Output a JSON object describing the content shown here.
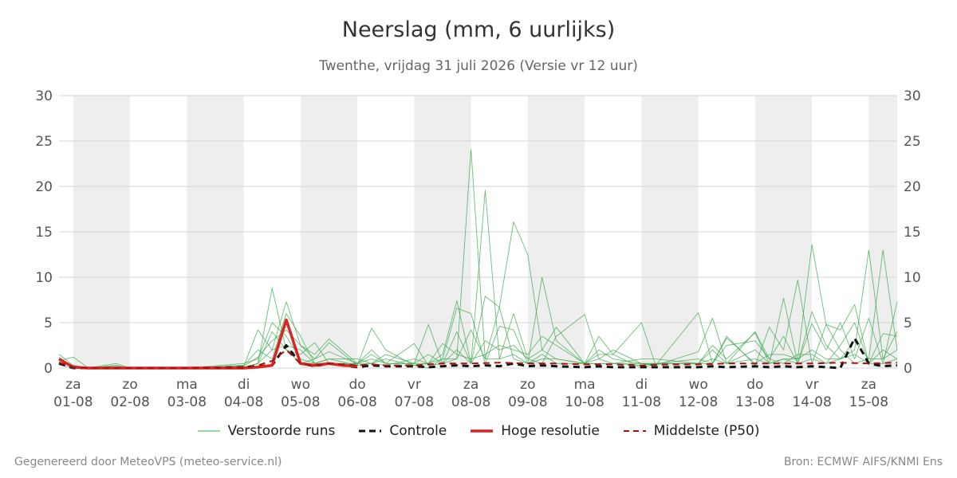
{
  "chart_data": {
    "type": "line",
    "title": "Neerslag (mm, 6 uurlijks)",
    "subtitle": "Twenthe, vrijdag 31 juli 2026 (Versie vr 12 uur)",
    "ylim": [
      0,
      30
    ],
    "yticks": [
      0,
      5,
      10,
      15,
      20,
      25,
      30
    ],
    "xlim": [
      -0.25,
      14.5
    ],
    "x_ticks": [
      {
        "x": 0,
        "day": "za",
        "date": "01-08"
      },
      {
        "x": 1,
        "day": "zo",
        "date": "02-08"
      },
      {
        "x": 2,
        "day": "ma",
        "date": "03-08"
      },
      {
        "x": 3,
        "day": "di",
        "date": "04-08"
      },
      {
        "x": 4,
        "day": "wo",
        "date": "05-08"
      },
      {
        "x": 5,
        "day": "do",
        "date": "06-08"
      },
      {
        "x": 6,
        "day": "vr",
        "date": "07-08"
      },
      {
        "x": 7,
        "day": "za",
        "date": "08-08"
      },
      {
        "x": 8,
        "day": "zo",
        "date": "09-08"
      },
      {
        "x": 9,
        "day": "ma",
        "date": "10-08"
      },
      {
        "x": 10,
        "day": "di",
        "date": "11-08"
      },
      {
        "x": 11,
        "day": "wo",
        "date": "12-08"
      },
      {
        "x": 12,
        "day": "do",
        "date": "13-08"
      },
      {
        "x": 13,
        "day": "vr",
        "date": "14-08"
      },
      {
        "x": 14,
        "day": "za",
        "date": "15-08"
      }
    ],
    "night_bands": [
      [
        0,
        1
      ],
      [
        2,
        3
      ],
      [
        4,
        5
      ],
      [
        6,
        7
      ],
      [
        8,
        9
      ],
      [
        10,
        11
      ],
      [
        12,
        13
      ],
      [
        14,
        14.5
      ]
    ],
    "grid": true,
    "legend_position": "bottom-center",
    "series": [
      {
        "name": "Verstoorde runs",
        "style": "ensemble",
        "color": "#3aa84a",
        "runs": [
          {
            "x": [
              -0.25,
              0,
              0.25,
              0.75,
              1,
              2,
              3,
              3.25,
              3.5,
              3.75,
              4,
              4.25,
              4.5,
              5,
              5.25,
              5.5,
              6,
              6.25,
              6.5,
              6.75,
              7,
              7.25,
              7.5,
              7.75,
              8,
              8.25,
              8.5,
              9,
              9.25,
              9.5,
              10,
              10.25,
              11,
              11.25,
              11.5,
              12,
              12.25,
              12.5,
              12.75,
              13,
              13.25,
              13.5,
              13.75,
              14,
              14.25,
              14.5
            ],
            "y": [
              1.5,
              0.3,
              0,
              0.5,
              0,
              0,
              0,
              0.5,
              8.8,
              2,
              0.5,
              1,
              2.8,
              0.3,
              4.4,
              2,
              0.3,
              0,
              1,
              6.6,
              6,
              0.5,
              4.6,
              4.2,
              0.5,
              10,
              3,
              0.5,
              1.5,
              1.5,
              0,
              0.5,
              1,
              0.5,
              3.5,
              0.3,
              4.5,
              2,
              9.7,
              0.5,
              4.8,
              2,
              0.5,
              1,
              13,
              2
            ]
          },
          {
            "x": [
              -0.25,
              0,
              0.25,
              0.75,
              1,
              2,
              3,
              3.25,
              3.5,
              3.75,
              4,
              4.25,
              4.5,
              5,
              5.25,
              5.5,
              6,
              6.25,
              6.5,
              6.75,
              7,
              7.25,
              7.5,
              7.75,
              8,
              8.25,
              8.5,
              9,
              9.25,
              9.5,
              10,
              10.25,
              11,
              11.25,
              11.5,
              12,
              12.25,
              12.5,
              12.75,
              13,
              13.25,
              13.5,
              13.75,
              14,
              14.25,
              14.5
            ],
            "y": [
              1,
              0.2,
              0,
              0.3,
              0,
              0,
              0.2,
              4.2,
              2,
              7.3,
              2.5,
              1.5,
              3.2,
              0.5,
              1.5,
              0.5,
              2.7,
              0.3,
              0.5,
              1,
              24.1,
              1,
              6.7,
              16.1,
              12.5,
              2,
              4.5,
              0.5,
              3.5,
              1.5,
              5,
              0.3,
              6.1,
              0.5,
              3.3,
              0.5,
              1.5,
              1.5,
              1,
              13.6,
              4.8,
              4.2,
              7,
              0.5,
              3.8,
              3.5
            ]
          },
          {
            "x": [
              -0.25,
              0,
              0.25,
              0.75,
              1,
              2,
              3,
              3.25,
              3.5,
              3.75,
              4,
              4.25,
              4.5,
              5,
              5.25,
              5.5,
              6,
              6.25,
              6.5,
              6.75,
              7,
              7.25,
              7.5,
              7.75,
              8,
              8.25,
              8.5,
              9,
              9.25,
              9.5,
              10,
              10.25,
              11,
              11.25,
              11.5,
              12,
              12.25,
              12.5,
              12.75,
              13,
              13.25,
              13.5,
              13.75,
              14,
              14.25,
              14.5
            ],
            "y": [
              0.8,
              1.2,
              0.1,
              0.1,
              0,
              0,
              0.5,
              1,
              5,
              3.5,
              1,
              0.5,
              0.5,
              0.5,
              2,
              0.5,
              0.5,
              4.8,
              0.5,
              4,
              0.5,
              19.6,
              1,
              6,
              1,
              0.5,
              3.5,
              5.9,
              1,
              2,
              0.5,
              0.3,
              1.8,
              5.5,
              0.5,
              4,
              1,
              3.5,
              0.5,
              4.9,
              2,
              5,
              1,
              5.5,
              0.5,
              7.3
            ]
          },
          {
            "x": [
              -0.25,
              0,
              0.25,
              0.75,
              1,
              2,
              3,
              3.25,
              3.5,
              3.75,
              4,
              4.25,
              4.5,
              5,
              5.25,
              5.5,
              6,
              6.25,
              6.5,
              6.75,
              7,
              7.25,
              7.5,
              7.75,
              8,
              8.25,
              8.5,
              9,
              9.25,
              9.5,
              10,
              10.25,
              11,
              11.25,
              11.5,
              12,
              12.25,
              12.5,
              12.75,
              13,
              13.25,
              13.5,
              13.75,
              14,
              14.25,
              14.5
            ],
            "y": [
              1.2,
              0,
              0,
              0.2,
              0,
              0,
              0.3,
              2,
              1,
              6,
              3.5,
              0.5,
              1,
              1,
              0.5,
              1.5,
              0.5,
              0.5,
              1.5,
              7.4,
              0.5,
              7.9,
              6.7,
              1,
              0.5,
              1,
              1,
              0.5,
              2,
              1,
              0.5,
              0.5,
              0.5,
              2.5,
              1,
              3.9,
              0.5,
              7.7,
              0.5,
              6.2,
              2.5,
              1,
              2,
              13,
              1,
              4
            ]
          },
          {
            "x": [
              -0.25,
              0,
              0.25,
              0.75,
              1,
              2,
              3,
              3.25,
              3.5,
              3.75,
              4,
              4.25,
              4.5,
              5,
              5.25,
              5.5,
              6,
              6.25,
              6.5,
              6.75,
              7,
              7.25,
              7.5,
              7.75,
              8,
              8.25,
              8.5,
              9,
              9.25,
              9.5,
              10,
              10.25,
              11,
              11.25,
              11.5,
              12,
              12.25,
              12.5,
              12.75,
              13,
              13.25,
              13.5,
              13.75,
              14,
              14.25,
              14.5
            ],
            "y": [
              0.5,
              0.3,
              0,
              0.1,
              0,
              0,
              0.1,
              0.5,
              4,
              2,
              1.5,
              2.8,
              0.5,
              0.5,
              0.5,
              0.3,
              1,
              0.5,
              2.7,
              1.5,
              1,
              1.5,
              2.5,
              2,
              1.5,
              3.5,
              2.5,
              0.5,
              0.5,
              0.5,
              1,
              1,
              0.5,
              0.5,
              2.5,
              3,
              1,
              0.5,
              1.5,
              1.5,
              0.5,
              2.5,
              5,
              0.5,
              2,
              1
            ]
          },
          {
            "x": [
              -0.25,
              0,
              0.25,
              0.75,
              1,
              2,
              3,
              3.25,
              3.5,
              3.75,
              4,
              4.25,
              4.5,
              5,
              5.25,
              5.5,
              6,
              6.25,
              6.5,
              6.75,
              7,
              7.25,
              7.5,
              7.75,
              8,
              8.25,
              8.5,
              9,
              9.25,
              9.5,
              10,
              10.25,
              11,
              11.25,
              11.5,
              12,
              12.25,
              12.5,
              12.75,
              13,
              13.25,
              13.5,
              13.75,
              14,
              14.25,
              14.5
            ],
            "y": [
              0.7,
              0.1,
              0,
              0,
              0,
              0,
              0.2,
              1.2,
              3,
              4.2,
              2.5,
              1,
              1.8,
              0.5,
              1,
              0.5,
              0.5,
              1.5,
              0.5,
              2,
              0.5,
              3,
              2,
              2.5,
              1,
              2,
              1,
              0.5,
              1,
              0.5,
              0.5,
              0.5,
              0.5,
              2,
              0.5,
              2,
              0.5,
              1,
              1,
              2,
              1,
              1,
              3,
              1,
              1,
              2
            ]
          },
          {
            "x": [
              -0.25,
              0,
              0.25,
              0.75,
              1,
              2,
              3,
              3.25,
              3.5,
              3.75,
              4,
              4.25,
              4.5,
              5,
              5.25,
              5.5,
              6,
              6.25,
              6.5,
              6.75,
              7,
              7.25,
              7.5,
              7.75,
              8,
              8.25,
              8.5,
              9,
              9.25,
              9.5,
              10,
              10.25,
              11,
              11.25,
              11.5,
              12,
              12.25,
              12.5,
              12.75,
              13,
              13.25,
              13.5,
              13.75,
              14,
              14.25,
              14.5
            ],
            "y": [
              0.4,
              0,
              0,
              0,
              0,
              0,
              0.1,
              0.5,
              2,
              2.5,
              2,
              0.5,
              1,
              0.3,
              0.5,
              1,
              0.3,
              0.5,
              1,
              1,
              4.2,
              1,
              1,
              1.5,
              0.5,
              1.5,
              0.5,
              0.5,
              0.5,
              0.5,
              0.3,
              0.5,
              0.5,
              1,
              0.5,
              1,
              0.5,
              1,
              0.5,
              1,
              0.5,
              1,
              1.5,
              0.5,
              0.5,
              1
            ]
          }
        ]
      },
      {
        "name": "Controle",
        "style": "dashed",
        "color": "#111111",
        "x": [
          -0.25,
          0,
          0.25,
          0.75,
          1,
          2,
          3,
          3.25,
          3.5,
          3.75,
          4,
          4.25,
          4.5,
          5,
          5.25,
          5.5,
          6,
          6.25,
          6.5,
          6.75,
          7,
          7.25,
          7.5,
          7.75,
          8,
          8.25,
          8.5,
          9,
          9.25,
          9.5,
          10,
          10.25,
          11,
          11.25,
          11.5,
          12,
          12.25,
          12.5,
          12.75,
          13,
          13.25,
          13.5,
          13.75,
          14,
          14.25,
          14.5
        ],
        "y": [
          0.5,
          0,
          0,
          0,
          0,
          0,
          0.1,
          0.2,
          0.3,
          2.5,
          0.5,
          0.2,
          0.5,
          0.1,
          0.3,
          0.2,
          0.2,
          0.1,
          0.2,
          0.3,
          0.2,
          0.3,
          0.2,
          0.5,
          0.2,
          0.3,
          0.2,
          0.1,
          0.2,
          0.1,
          0.1,
          0.1,
          0.1,
          0.2,
          0.1,
          0.2,
          0.1,
          0.2,
          0.1,
          0.2,
          0.1,
          0,
          3.3,
          0.5,
          0.2,
          0.3
        ]
      },
      {
        "name": "Hoge resolutie",
        "style": "thick",
        "color": "#dd2222",
        "x": [
          -0.25,
          0,
          0.25,
          1,
          2,
          3,
          3.25,
          3.5,
          3.75,
          4,
          4.25,
          4.5,
          4.75,
          5
        ],
        "y": [
          1,
          0.1,
          0,
          0,
          0,
          0,
          0.1,
          0.3,
          5.3,
          0.5,
          0.3,
          0.5,
          0.3,
          0.2
        ]
      },
      {
        "name": "Middelste (P50)",
        "style": "dashed",
        "color": "#aa1111",
        "x": [
          -0.25,
          0,
          0.25,
          1,
          2,
          3,
          3.25,
          3.5,
          3.75,
          4,
          4.25,
          4.5,
          5,
          5.25,
          5.5,
          6,
          6.5,
          7,
          7.5,
          8,
          8.5,
          9,
          9.5,
          10,
          10.5,
          11,
          11.5,
          12,
          12.5,
          13,
          13.5,
          14,
          14.5
        ],
        "y": [
          0.6,
          0.1,
          0,
          0,
          0,
          0,
          0.3,
          0.8,
          2,
          0.5,
          0.3,
          0.5,
          0.3,
          0.4,
          0.3,
          0.3,
          0.5,
          0.5,
          0.6,
          0.5,
          0.5,
          0.4,
          0.4,
          0.3,
          0.4,
          0.4,
          0.5,
          0.5,
          0.5,
          0.5,
          0.6,
          0.5,
          0.6
        ]
      }
    ]
  },
  "legend": [
    {
      "label": "Verstoorde runs",
      "color": "#3aa84a",
      "style": "thin"
    },
    {
      "label": "Controle",
      "color": "#111111",
      "style": "dashed"
    },
    {
      "label": "Hoge resolutie",
      "color": "#dd2222",
      "style": "thick"
    },
    {
      "label": "Middelste (P50)",
      "color": "#aa1111",
      "style": "dashed"
    }
  ],
  "footer": {
    "left": "Gegenereerd door MeteoVPS (meteo-service.nl)",
    "right": "Bron: ECMWF AIFS/KNMI Ens"
  }
}
